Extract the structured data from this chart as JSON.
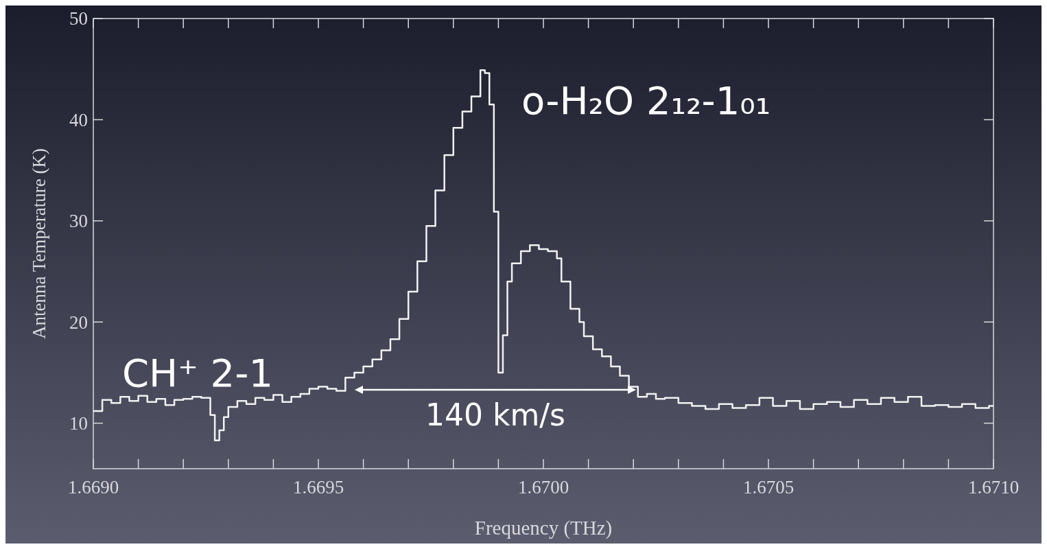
{
  "chart_data": {
    "type": "step",
    "xlabel": "Frequency (THz)",
    "ylabel": "Antenna Temperature (K)",
    "xlim": [
      1.669,
      1.671
    ],
    "ylim": [
      5.5,
      50
    ],
    "xticks": [
      {
        "value": 1.669,
        "label": "1.6690"
      },
      {
        "value": 1.6691,
        "label": null
      },
      {
        "value": 1.6692,
        "label": null
      },
      {
        "value": 1.6693,
        "label": null
      },
      {
        "value": 1.6694,
        "label": null
      },
      {
        "value": 1.6695,
        "label": "1.6695"
      },
      {
        "value": 1.6696,
        "label": null
      },
      {
        "value": 1.6697,
        "label": null
      },
      {
        "value": 1.6698,
        "label": null
      },
      {
        "value": 1.6699,
        "label": null
      },
      {
        "value": 1.67,
        "label": "1.6700"
      },
      {
        "value": 1.6701,
        "label": null
      },
      {
        "value": 1.6702,
        "label": null
      },
      {
        "value": 1.6703,
        "label": null
      },
      {
        "value": 1.6704,
        "label": null
      },
      {
        "value": 1.6705,
        "label": "1.6705"
      },
      {
        "value": 1.6706,
        "label": null
      },
      {
        "value": 1.6707,
        "label": null
      },
      {
        "value": 1.6708,
        "label": null
      },
      {
        "value": 1.6709,
        "label": null
      },
      {
        "value": 1.671,
        "label": "1.6710"
      }
    ],
    "yticks": [
      10,
      20,
      30,
      40,
      50
    ],
    "color": "#f2f2f2",
    "x": [
      1.669,
      1.66902,
      1.66904,
      1.66906,
      1.66908,
      1.6691,
      1.66912,
      1.66914,
      1.66916,
      1.66918,
      1.6692,
      1.66922,
      1.66924,
      1.66926,
      1.66927,
      1.66928,
      1.66929,
      1.6693,
      1.66932,
      1.66934,
      1.66936,
      1.66938,
      1.6694,
      1.66942,
      1.66944,
      1.66946,
      1.66948,
      1.6695,
      1.66952,
      1.66954,
      1.66956,
      1.66958,
      1.6696,
      1.66962,
      1.66964,
      1.66966,
      1.66968,
      1.6697,
      1.66972,
      1.66974,
      1.66976,
      1.66978,
      1.6698,
      1.66982,
      1.66984,
      1.66986,
      1.66987,
      1.66988,
      1.66989,
      1.6699,
      1.66991,
      1.66992,
      1.66993,
      1.66995,
      1.66997,
      1.66999,
      1.67001,
      1.67003,
      1.67004,
      1.67006,
      1.67008,
      1.67009,
      1.67011,
      1.67013,
      1.67015,
      1.67017,
      1.67019,
      1.67021,
      1.67023,
      1.67025,
      1.67027,
      1.6703,
      1.67033,
      1.67036,
      1.67039,
      1.67042,
      1.67045,
      1.67048,
      1.67051,
      1.67054,
      1.67057,
      1.6706,
      1.67063,
      1.67066,
      1.67069,
      1.67072,
      1.67075,
      1.67078,
      1.67081,
      1.67084,
      1.67087,
      1.6709,
      1.67093,
      1.67096,
      1.67099,
      1.671
    ],
    "values": [
      11.2,
      12.3,
      12,
      12.6,
      12.2,
      12.7,
      12.1,
      12.4,
      11.8,
      12.3,
      12.4,
      12.6,
      12.5,
      10.8,
      8.3,
      9.3,
      10.6,
      11.6,
      12.2,
      11.9,
      12.5,
      12.3,
      12.8,
      12.1,
      12.6,
      12.9,
      13.4,
      13.6,
      13.4,
      13.2,
      14.5,
      15,
      15.6,
      16.3,
      17.2,
      18.3,
      20.3,
      23,
      26,
      29.5,
      33,
      36.5,
      39.2,
      40.8,
      42.3,
      44.9,
      44.6,
      41.5,
      30.9,
      15,
      18.7,
      24,
      25.8,
      27,
      27.6,
      27.2,
      27,
      26.3,
      24,
      21.3,
      20,
      18.6,
      17.3,
      16.6,
      15.6,
      14.7,
      13.6,
      12.6,
      12.9,
      12.4,
      12.5,
      12,
      11.7,
      11.4,
      11.9,
      11.5,
      11.8,
      12.5,
      11.7,
      12.2,
      11.4,
      11.9,
      12.1,
      11.6,
      12.3,
      11.9,
      12.5,
      12.1,
      12.6,
      11.7,
      11.8,
      11.6,
      11.9,
      11.5,
      11.7,
      11.7
    ],
    "annotations": [
      "o-H₂O 2₁₂-1₀₁",
      "CH⁺ 2-1",
      "140 km/s"
    ]
  }
}
